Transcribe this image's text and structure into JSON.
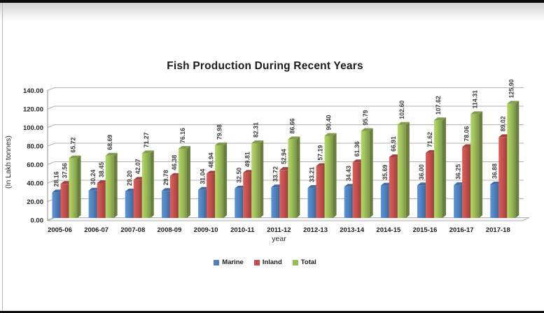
{
  "page": {
    "top_bar_color": "#0b0b0b",
    "bottom_bar_color": "#0b0b0b",
    "background_color": "#ffffff"
  },
  "chart_data": {
    "type": "bar",
    "effect": "3d-clustered-column",
    "title": "Fish Production During Recent Years",
    "xlabel": "year",
    "ylabel": "(In Lakh tonnes)",
    "categories": [
      "2005-06",
      "2006-07",
      "2007-08",
      "2008-09",
      "2009-10",
      "2010-11",
      "2011-12",
      "2012-13",
      "2013-14",
      "2014-15",
      "2015-16",
      "2016-17",
      "2017-18"
    ],
    "series": [
      {
        "name": "Marine",
        "color": "#4f81bd",
        "values": [
          28.16,
          30.24,
          29.2,
          29.78,
          31.04,
          32.5,
          33.72,
          33.21,
          34.43,
          35.69,
          36.0,
          36.25,
          36.88
        ]
      },
      {
        "name": "Inland",
        "color": "#c0504d",
        "values": [
          37.56,
          38.45,
          42.07,
          46.38,
          48.94,
          49.81,
          52.94,
          57.19,
          61.36,
          66.91,
          71.62,
          78.06,
          89.02
        ]
      },
      {
        "name": "Total",
        "color": "#9bbb59",
        "values": [
          65.72,
          68.69,
          71.27,
          76.16,
          79.98,
          82.31,
          86.66,
          90.4,
          95.79,
          102.6,
          107.62,
          114.31,
          125.9
        ]
      }
    ],
    "ylim": [
      0,
      140
    ],
    "ytick_step": 20,
    "ytick_labels": [
      "0.00",
      "20.00",
      "40.00",
      "60.00",
      "80.00",
      "100.00",
      "120.00",
      "140.00"
    ],
    "grid": true,
    "gridline_color": "#b3b3b3",
    "legend_position": "bottom",
    "data_labels": "rotated-90-above-bars"
  }
}
